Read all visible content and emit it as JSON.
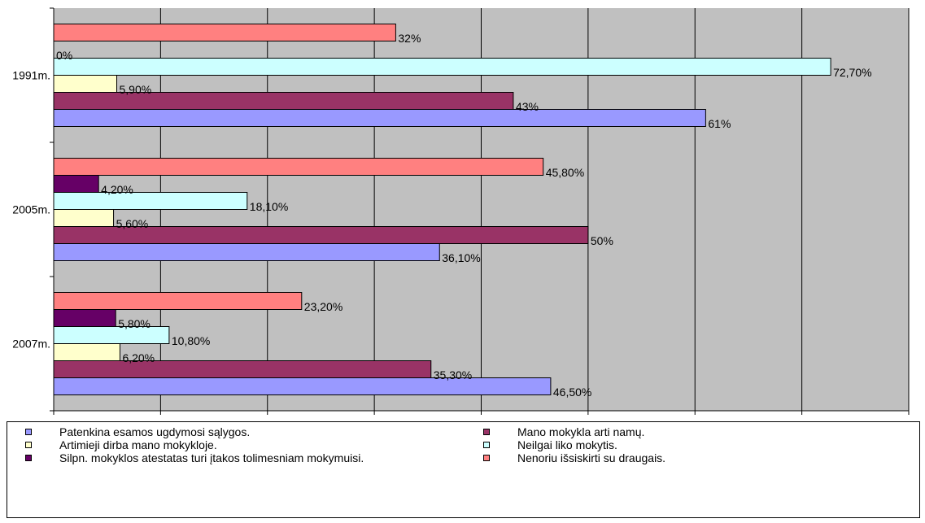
{
  "chart_data": {
    "type": "bar",
    "orientation": "horizontal",
    "categories": [
      "1991m.",
      "2005m.",
      "2007m."
    ],
    "series": [
      {
        "name": "Patenkina esamos ugdymosi sąlygos.",
        "color": "#9999FF",
        "values": [
          61,
          36.1,
          46.5
        ],
        "labels": [
          "61%",
          "36,10%",
          "46,50%"
        ]
      },
      {
        "name": "Mano mokykla arti namų.",
        "color": "#993366",
        "values": [
          43,
          50,
          35.3
        ],
        "labels": [
          "43%",
          "50%",
          "35,30%"
        ]
      },
      {
        "name": "Artimieji dirba mano mokykloje.",
        "color": "#FFFFCC",
        "values": [
          5.9,
          5.6,
          6.2
        ],
        "labels": [
          "5,90%",
          "5,60%",
          "6,20%"
        ]
      },
      {
        "name": "Neilgai liko mokytis.",
        "color": "#CCFFFF",
        "values": [
          72.7,
          18.1,
          10.8
        ],
        "labels": [
          "72,70%",
          "18,10%",
          "10,80%"
        ]
      },
      {
        "name": "Silpn. mokyklos atestatas turi įtakos tolimesniam mokymuisi.",
        "color": "#660066",
        "values": [
          0,
          4.2,
          5.8
        ],
        "labels": [
          "0%",
          "4,20%",
          "5,80%"
        ]
      },
      {
        "name": "Nenoriu išsiskirti su draugais.",
        "color": "#FF8080",
        "values": [
          32,
          45.8,
          23.2
        ],
        "labels": [
          "32%",
          "45,80%",
          "23,20%"
        ]
      }
    ],
    "xlim": [
      0,
      80
    ],
    "x_ticks": [
      "0%",
      "10%",
      "20%",
      "30%",
      "40%",
      "50%",
      "60%",
      "70%",
      "80%"
    ],
    "grid": true,
    "plot_background": "#C0C0C0",
    "legend_position": "bottom"
  },
  "legend": {
    "items": [
      "Patenkina esamos ugdymosi sąlygos.",
      "Mano mokykla arti namų.",
      "Artimieji dirba mano mokykloje.",
      "Neilgai liko mokytis.",
      "Silpn. mokyklos atestatas turi įtakos tolimesniam mokymuisi.",
      "Nenoriu išsiskirti su draugais."
    ],
    "colors": [
      "#9999FF",
      "#993366",
      "#FFFFCC",
      "#CCFFFF",
      "#660066",
      "#FF8080"
    ]
  }
}
